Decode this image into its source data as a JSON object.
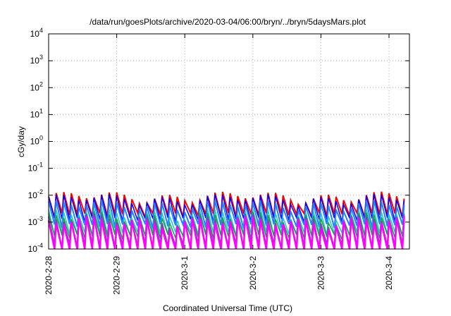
{
  "chart_data": {
    "type": "line",
    "title": "/data/run/goesPlots/archive/2020-03-04/06:00/bryn/../bryn/5daysMars.plot",
    "xlabel": "Coordinated Universal Time (UTC)",
    "ylabel": "cGy/day",
    "yscale": "log",
    "ylim": [
      0.0001,
      10000
    ],
    "xlim": [
      0,
      5.3
    ],
    "grid": true,
    "legend": "none",
    "y_ticks": [
      {
        "base": "10",
        "exp": "-4",
        "value": 0.0001
      },
      {
        "base": "10",
        "exp": "-3",
        "value": 0.001
      },
      {
        "base": "10",
        "exp": "-2",
        "value": 0.01
      },
      {
        "base": "10",
        "exp": "-1",
        "value": 0.1
      },
      {
        "base": "10",
        "exp": "0",
        "value": 1
      },
      {
        "base": "10",
        "exp": "1",
        "value": 10
      },
      {
        "base": "10",
        "exp": "2",
        "value": 100
      },
      {
        "base": "10",
        "exp": "3",
        "value": 1000
      },
      {
        "base": "10",
        "exp": "4",
        "value": 10000
      }
    ],
    "x_ticks": [
      {
        "label": "2020-2-28",
        "value": 0
      },
      {
        "label": "2020-2-29",
        "value": 1
      },
      {
        "label": "2020-3-1",
        "value": 2
      },
      {
        "label": "2020-3-2",
        "value": 3
      },
      {
        "label": "2020-3-3",
        "value": 4
      },
      {
        "label": "2020-3-4",
        "value": 5
      }
    ],
    "series": [
      {
        "color": "#ff0000",
        "peak": 0.009,
        "trough": 0.0018,
        "width": 2
      },
      {
        "color": "#0000ff",
        "peak": 0.0075,
        "trough": 0.0012,
        "width": 1.5
      },
      {
        "color": "#2080ff",
        "peak": 0.0045,
        "trough": 0.0007,
        "width": 2
      },
      {
        "color": "#20c8c8",
        "peak": 0.0022,
        "trough": 0.00035,
        "width": 1.5
      },
      {
        "color": "#10a040",
        "peak": 0.0016,
        "trough": 0.00028,
        "width": 1.5
      },
      {
        "color": "#8040c0",
        "peak": 0.0013,
        "trough": 0.00012,
        "width": 2
      },
      {
        "color": "#ff00ff",
        "peak": 0.0011,
        "trough": 8e-05,
        "width": 2.5
      }
    ]
  }
}
